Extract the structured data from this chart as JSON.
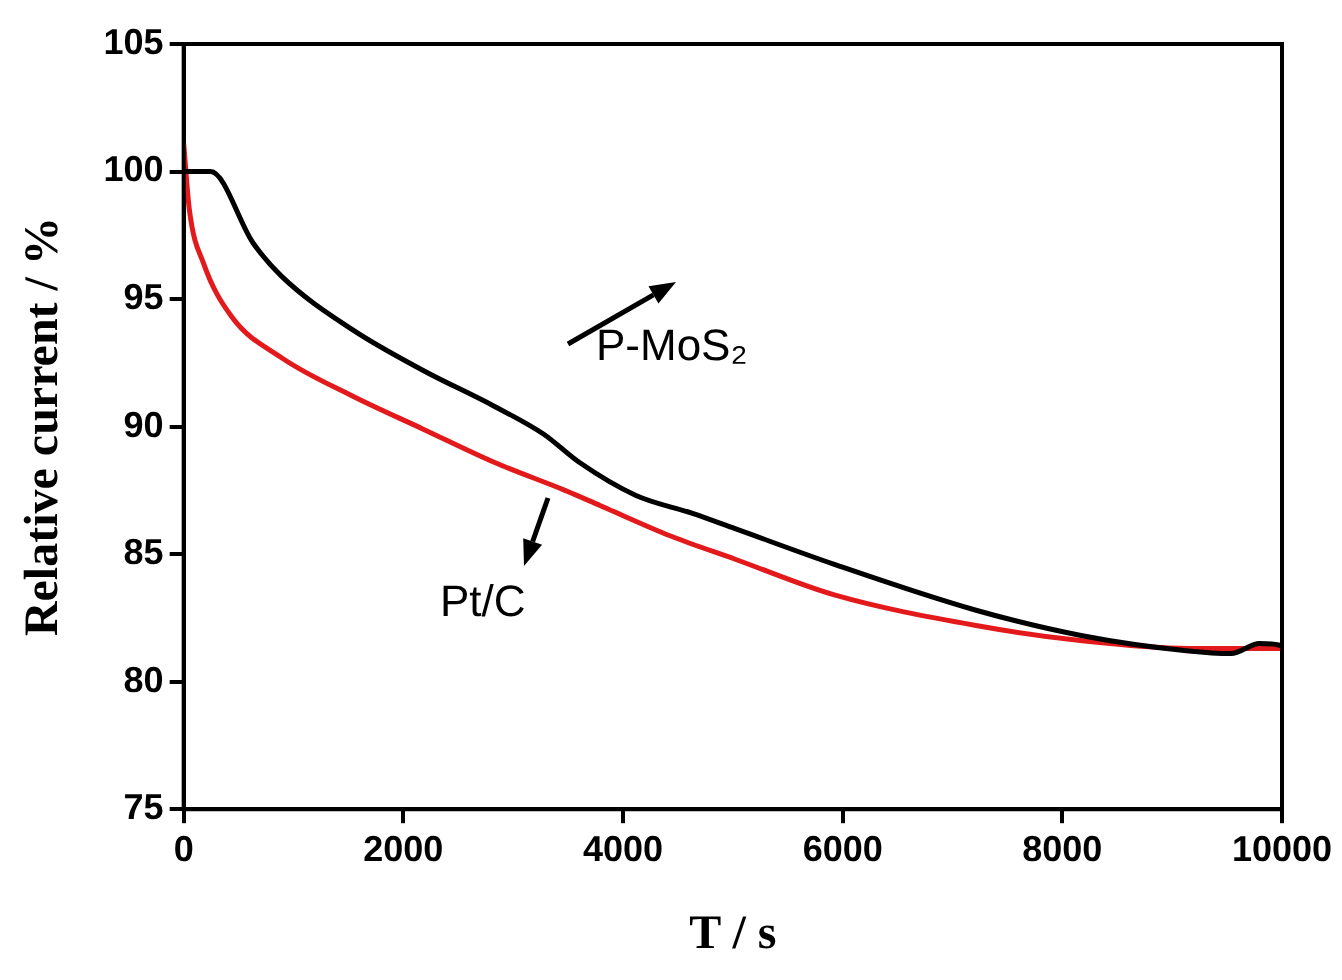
{
  "chart_data": {
    "type": "line",
    "xlabel": "T / s",
    "ylabel": "Relative current / %",
    "xlim": [
      0,
      10000
    ],
    "xticks": [
      0,
      2000,
      4000,
      6000,
      8000,
      10000
    ],
    "ylim": [
      75,
      105
    ],
    "yticks": [
      75,
      80,
      85,
      90,
      95,
      100,
      105
    ],
    "grid": false,
    "legend": false,
    "marker": "none",
    "line_style": "solid",
    "annotations": [
      "P-MoS₂",
      "Pt/C"
    ],
    "series": [
      {
        "color": "#000000",
        "x": [
          0,
          245,
          632,
          890,
          1536,
          2181,
          2827,
          3279,
          3601,
          4118,
          4633,
          5021,
          5924,
          7214,
          8182,
          9150,
          9537,
          9795,
          9956,
          10000
        ],
        "values": [
          100,
          100,
          97.2,
          95.9,
          93.8,
          92.2,
          90.8,
          89.7,
          88.6,
          87.3,
          86.6,
          86.0,
          84.6,
          82.8,
          81.8,
          81.2,
          81.1,
          81.5,
          81.45,
          81.4
        ]
      },
      {
        "color": "#e31a1c",
        "x": [
          0,
          52,
          181,
          439,
          891,
          1536,
          2181,
          2827,
          3472,
          3795,
          4440,
          5021,
          5924,
          7214,
          8182,
          9150,
          9956,
          10000
        ],
        "values": [
          101.1,
          98.5,
          96.4,
          94.3,
          92.7,
          91.2,
          89.9,
          88.6,
          87.5,
          86.9,
          85.7,
          84.8,
          83.4,
          82.2,
          81.6,
          81.3,
          81.3,
          81.3
        ]
      }
    ]
  }
}
